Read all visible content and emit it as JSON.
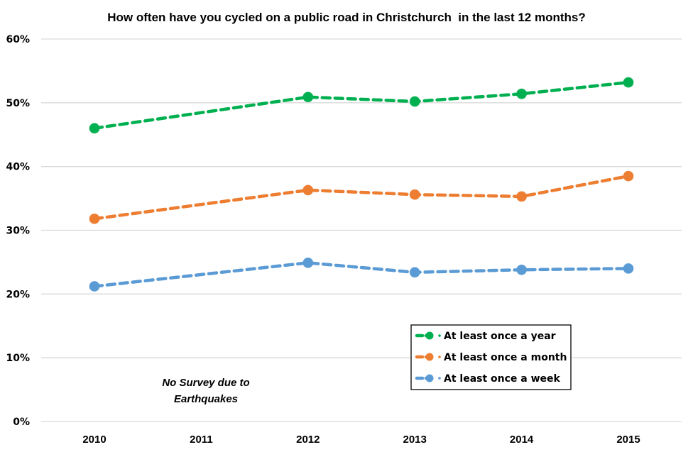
{
  "chart_data": {
    "type": "line",
    "title": "How often have you cycled on a public road in Christchurch  in the last 12 months?",
    "xlabel": "",
    "ylabel": "",
    "categories": [
      "2010",
      "2011",
      "2012",
      "2013",
      "2014",
      "2015"
    ],
    "ylim": [
      0,
      60
    ],
    "yticks": [
      0,
      10,
      20,
      30,
      40,
      50,
      60
    ],
    "ytick_labels": [
      "0%",
      "10%",
      "20%",
      "30%",
      "40%",
      "50%",
      "60%"
    ],
    "grid": true,
    "legend_position": "bottom-right",
    "series": [
      {
        "name": "At least once a year",
        "color": "#00B050",
        "line_style": "dashed",
        "values": [
          46.0,
          null,
          50.9,
          50.2,
          51.4,
          53.2
        ]
      },
      {
        "name": "At least once a month",
        "color": "#ED7D31",
        "line_style": "dashed",
        "values": [
          31.8,
          null,
          36.3,
          35.6,
          35.3,
          38.5
        ]
      },
      {
        "name": "At least once a week",
        "color": "#5B9BD5",
        "line_style": "dashed",
        "values": [
          21.2,
          null,
          24.9,
          23.4,
          23.8,
          24.0
        ]
      }
    ],
    "annotations": [
      {
        "text_lines": [
          "No Survey due to",
          "Earthquakes"
        ],
        "category": "2011"
      }
    ]
  }
}
